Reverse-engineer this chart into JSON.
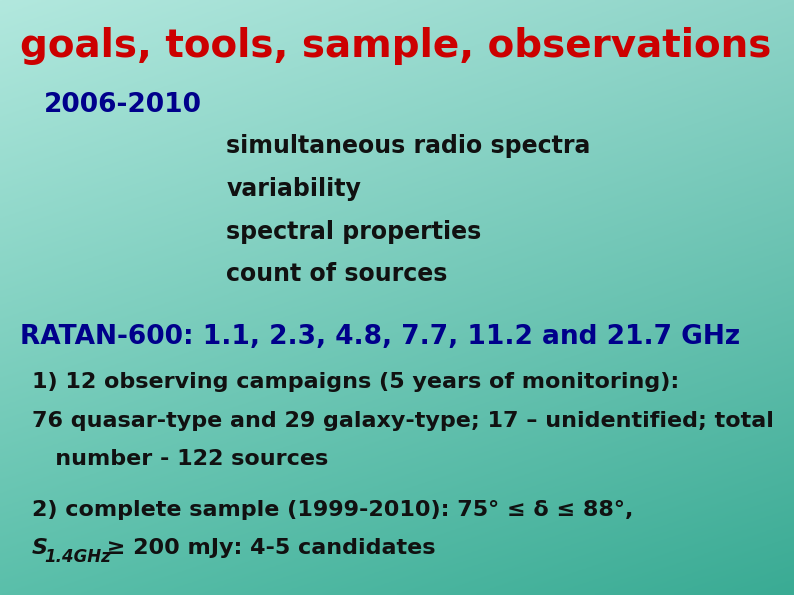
{
  "title": "goals, tools, sample, observations",
  "title_color": "#cc0000",
  "title_fontsize": 28,
  "subtitle": "2006-2010",
  "subtitle_color": "#00008b",
  "subtitle_fontsize": 19,
  "indent_items": [
    "simultaneous radio spectra",
    "variability",
    "spectral properties",
    "count of sources"
  ],
  "indent_color": "#111111",
  "indent_fontsize": 17,
  "ratan_line": "RATAN-600: 1.1, 2.3, 4.8, 7.7, 11.2 and 21.7 GHz",
  "ratan_color": "#00008b",
  "ratan_fontsize": 19,
  "body_line1": "1) 12 observing campaigns (5 years of monitoring):",
  "body_line2": "76 quasar-type and 29 galaxy-type; 17 – unidentified; total",
  "body_line3": "   number - 122 sources",
  "body_line4": "2) complete sample (1999-2010): 75° ≤ δ ≤ 88°,",
  "body_line5_suffix": " ≥ 200 mJy: 4-5 candidates",
  "body_color": "#111111",
  "body_fontsize": 16,
  "bg_color_tl": "#b2e8de",
  "bg_color_tr": "#8ed4c8",
  "bg_color_bl": "#5abfaa",
  "bg_color_br": "#3aab94",
  "fig_width": 7.94,
  "fig_height": 5.95,
  "dpi": 100
}
